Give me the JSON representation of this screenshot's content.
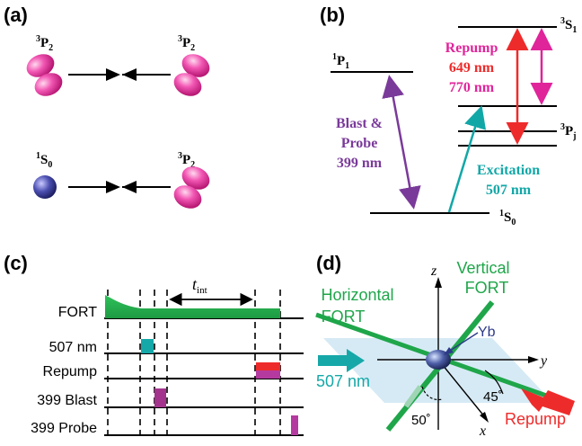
{
  "panels": {
    "a": {
      "label": "(a)",
      "top_left_state": "³P₂",
      "top_right_state": "³P₂",
      "bottom_left_state": "¹S₀",
      "bottom_right_state": "³P₂"
    },
    "b": {
      "label": "(b)",
      "level_1P1": "¹P₁",
      "level_3S1": "³S₁",
      "level_3Pj": "³Pⱼ",
      "level_1S0": "¹S₀",
      "blast_probe_line1": "Blast &",
      "blast_probe_line2": "Probe",
      "blast_probe_wavelength": "399 nm",
      "excitation_label": "Excitation",
      "excitation_wavelength": "507 nm",
      "repump_label": "Repump",
      "repump_wavelength_1": "649 nm",
      "repump_wavelength_2": "770 nm",
      "colors": {
        "purple": "#7a3a9a",
        "teal": "#12a7a7",
        "red": "#ee2b2b",
        "magenta": "#e0249a"
      }
    },
    "c": {
      "label": "(c)",
      "rows": [
        {
          "name": "FORT"
        },
        {
          "name": "507 nm"
        },
        {
          "name": "Repump"
        },
        {
          "name": "399 Blast"
        },
        {
          "name": "399 Probe"
        }
      ],
      "t_int_base": "t",
      "t_int_sub": "int",
      "colors": {
        "fort": "#22b24c",
        "teal": "#14a8a8",
        "red": "#ee2b2b",
        "purple": "#a3338c",
        "magenta": "#b43aa0"
      }
    },
    "d": {
      "label": "(d)",
      "vertical_fort_line1": "Vertical",
      "vertical_fort_line2": "FORT",
      "horizontal_fort_line1": "Horizontal",
      "horizontal_fort_line2": "FORT",
      "yb_label": "Yb",
      "beam_507": "507 nm",
      "beam_repump": "Repump",
      "axis_x": "x",
      "axis_y": "y",
      "axis_z": "z",
      "angle_50": "50˚",
      "angle_45": "45˚",
      "colors": {
        "fort": "#1fa64a",
        "teal": "#16a8a8",
        "red": "#ee2b2b",
        "plane": "#cfe6f3"
      }
    }
  }
}
